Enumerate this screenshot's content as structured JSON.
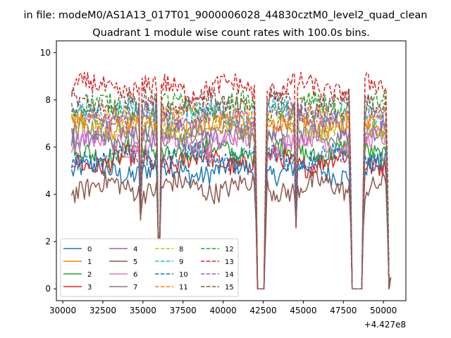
{
  "chart_data": {
    "type": "line",
    "suptitle": "in file: modeM0/AS1A13_017T01_9000006028_44830cztM0_level2_quad_clean",
    "title": "Quadrant 1 module wise count rates with 100.0s bins.",
    "xlabel": "",
    "ylabel": "",
    "x_offset_label": "+4.427e8",
    "x_range": [
      30550,
      50450
    ],
    "xlim": [
      29600,
      51400
    ],
    "ylim": [
      -0.5,
      10.5
    ],
    "x_ticks": [
      30000,
      32500,
      35000,
      37500,
      40000,
      42500,
      45000,
      47500,
      50000
    ],
    "x_tick_labels": [
      "30000",
      "32500",
      "35000",
      "37500",
      "40000",
      "42500",
      "45000",
      "47500",
      "50000"
    ],
    "y_ticks": [
      0,
      2,
      4,
      6,
      8,
      10
    ],
    "y_tick_labels": [
      "0",
      "2",
      "4",
      "6",
      "8",
      "10"
    ],
    "bin_size": 100,
    "dips": [
      {
        "center": 34850,
        "min": 3.0
      },
      {
        "center": 36000,
        "min": 2.2
      },
      {
        "center": 44550,
        "min": 2.7
      }
    ],
    "gaps": [
      {
        "start": 42100,
        "end": 42550
      },
      {
        "start": 48050,
        "end": 48650
      },
      {
        "start": 50350,
        "end": 50450
      }
    ],
    "grid": false,
    "legend_position": "lower-left",
    "legend_columns": 4,
    "series": [
      {
        "name": "0",
        "color": "#1f77b4",
        "style": "solid",
        "mean": 5.0
      },
      {
        "name": "1",
        "color": "#ff7f0e",
        "style": "solid",
        "mean": 7.0
      },
      {
        "name": "2",
        "color": "#2ca02c",
        "style": "solid",
        "mean": 5.8
      },
      {
        "name": "3",
        "color": "#d62728",
        "style": "solid",
        "mean": 5.4
      },
      {
        "name": "4",
        "color": "#9467bd",
        "style": "solid",
        "mean": 6.6
      },
      {
        "name": "5",
        "color": "#8c564b",
        "style": "solid",
        "mean": 4.3
      },
      {
        "name": "6",
        "color": "#e377c2",
        "style": "solid",
        "mean": 6.2
      },
      {
        "name": "7",
        "color": "#7f7f7f",
        "style": "solid",
        "mean": 6.5
      },
      {
        "name": "8",
        "color": "#bcbd22",
        "style": "dashed",
        "mean": 6.9
      },
      {
        "name": "9",
        "color": "#17becf",
        "style": "dashed",
        "mean": 7.5
      },
      {
        "name": "10",
        "color": "#1f77b4",
        "style": "dashed",
        "mean": 5.6
      },
      {
        "name": "11",
        "color": "#ff7f0e",
        "style": "dashed",
        "mean": 7.2
      },
      {
        "name": "12",
        "color": "#2ca02c",
        "style": "dashed",
        "mean": 7.7
      },
      {
        "name": "13",
        "color": "#d62728",
        "style": "dashed",
        "mean": 8.5
      },
      {
        "name": "14",
        "color": "#9467bd",
        "style": "dashed",
        "mean": 7.3
      },
      {
        "name": "15",
        "color": "#8c564b",
        "style": "dashed",
        "mean": 7.9
      }
    ]
  }
}
